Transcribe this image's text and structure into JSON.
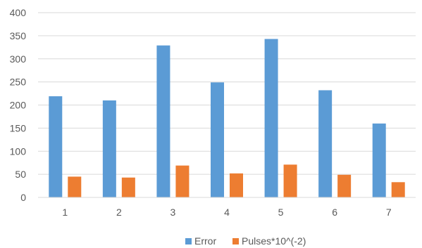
{
  "chart_data": {
    "type": "bar",
    "categories": [
      "1",
      "2",
      "3",
      "4",
      "5",
      "6",
      "7"
    ],
    "series": [
      {
        "name": "Error",
        "values": [
          219,
          210,
          329,
          249,
          343,
          232,
          160
        ],
        "color": "#5B9BD5"
      },
      {
        "name": "Pulses*10^(-2)",
        "values": [
          45,
          43,
          69,
          52,
          71,
          49,
          33
        ],
        "color": "#ED7D31"
      }
    ],
    "y_ticks": [
      "0",
      "50",
      "100",
      "150",
      "200",
      "250",
      "300",
      "350",
      "400"
    ],
    "ylim": [
      0,
      400
    ],
    "grid": true,
    "legend": "bottom"
  }
}
